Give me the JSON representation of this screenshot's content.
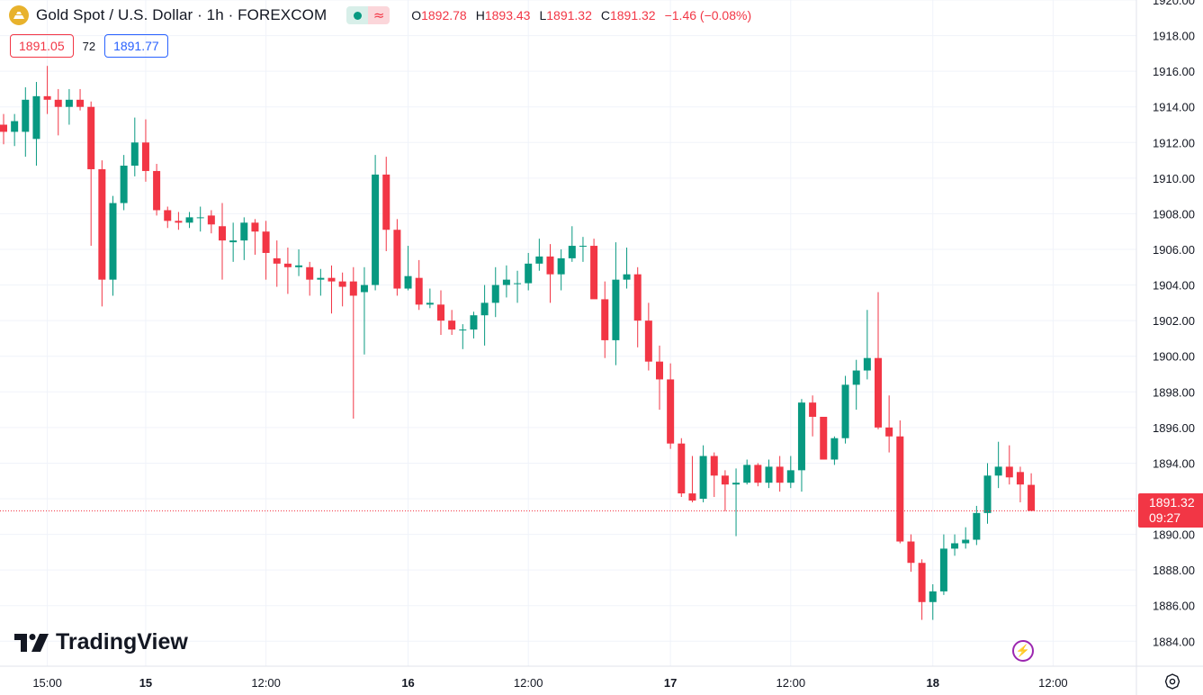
{
  "header": {
    "symbol_title": "Gold Spot / U.S. Dollar · 1h · FOREXCOM",
    "status_indicator": "market-open-dot",
    "ohlc": {
      "o_label": "O",
      "o_value": "1892.78",
      "h_label": "H",
      "h_value": "1893.43",
      "l_label": "L",
      "l_value": "1891.32",
      "c_label": "C",
      "c_value": "1891.32",
      "change": "−1.46 (−0.08%)"
    },
    "sell_price": "1891.05",
    "spread": "72",
    "buy_price": "1891.77"
  },
  "brand": {
    "name": "TradingView"
  },
  "price_label": {
    "price": "1891.32",
    "countdown": "09:27"
  },
  "colors": {
    "up": "#089981",
    "down": "#f23645",
    "grid": "#f0f3fa",
    "text": "#131722",
    "accent": "#2962ff"
  },
  "chart_data": {
    "type": "candlestick",
    "title": "Gold Spot / U.S. Dollar · 1h · FOREXCOM",
    "y_ticks": [
      "1884.00",
      "1886.00",
      "1888.00",
      "1890.00",
      "1892.00",
      "1894.00",
      "1896.00",
      "1898.00",
      "1900.00",
      "1902.00",
      "1904.00",
      "1906.00",
      "1908.00",
      "1910.00",
      "1912.00",
      "1914.00",
      "1916.00",
      "1918.00",
      "1920.00"
    ],
    "ylim": [
      1882.6,
      1920.0
    ],
    "x_ticks": [
      {
        "label": "15:00",
        "index": 4,
        "bold": false
      },
      {
        "label": "15",
        "index": 13,
        "bold": true
      },
      {
        "label": "12:00",
        "index": 24,
        "bold": false
      },
      {
        "label": "16",
        "index": 37,
        "bold": true
      },
      {
        "label": "12:00",
        "index": 48,
        "bold": false
      },
      {
        "label": "17",
        "index": 61,
        "bold": true
      },
      {
        "label": "12:00",
        "index": 72,
        "bold": false
      },
      {
        "label": "18",
        "index": 85,
        "bold": true
      },
      {
        "label": "12:00",
        "index": 96,
        "bold": false
      }
    ],
    "last_price": 1891.32,
    "candles": [
      [
        1913.0,
        1913.6,
        1911.9,
        1912.6
      ],
      [
        1912.6,
        1913.6,
        1911.8,
        1913.2
      ],
      [
        1912.6,
        1915.1,
        1911.2,
        1914.4
      ],
      [
        1912.2,
        1915.4,
        1910.7,
        1914.6
      ],
      [
        1914.6,
        1916.3,
        1913.6,
        1914.4
      ],
      [
        1914.4,
        1915.0,
        1912.4,
        1914.0
      ],
      [
        1914.0,
        1915.0,
        1913.0,
        1914.4
      ],
      [
        1914.4,
        1915.0,
        1913.8,
        1914.0
      ],
      [
        1914.0,
        1914.3,
        1906.2,
        1910.5
      ],
      [
        1910.5,
        1911.0,
        1902.8,
        1904.3
      ],
      [
        1904.3,
        1909.0,
        1903.4,
        1908.6
      ],
      [
        1908.6,
        1911.3,
        1908.2,
        1910.7
      ],
      [
        1910.7,
        1913.4,
        1910.1,
        1912.0
      ],
      [
        1912.0,
        1913.3,
        1909.8,
        1910.4
      ],
      [
        1910.4,
        1910.8,
        1907.9,
        1908.2
      ],
      [
        1908.2,
        1908.4,
        1907.2,
        1907.6
      ],
      [
        1907.6,
        1908.1,
        1907.1,
        1907.5
      ],
      [
        1907.5,
        1908.1,
        1907.2,
        1907.8
      ],
      [
        1907.8,
        1908.4,
        1907.0,
        1907.8
      ],
      [
        1907.9,
        1908.2,
        1906.9,
        1907.4
      ],
      [
        1907.3,
        1908.6,
        1904.3,
        1906.5
      ],
      [
        1906.4,
        1907.5,
        1905.3,
        1906.5
      ],
      [
        1906.5,
        1907.8,
        1905.4,
        1907.5
      ],
      [
        1907.5,
        1907.7,
        1905.7,
        1907.0
      ],
      [
        1907.0,
        1907.6,
        1904.3,
        1905.8
      ],
      [
        1905.5,
        1906.5,
        1903.9,
        1905.2
      ],
      [
        1905.2,
        1906.1,
        1903.5,
        1905.0
      ],
      [
        1905.0,
        1906.0,
        1904.5,
        1905.1
      ],
      [
        1905.0,
        1905.3,
        1903.4,
        1904.3
      ],
      [
        1904.3,
        1904.9,
        1903.4,
        1904.4
      ],
      [
        1904.4,
        1905.1,
        1902.4,
        1904.2
      ],
      [
        1904.2,
        1904.7,
        1902.8,
        1903.9
      ],
      [
        1904.2,
        1905.0,
        1896.5,
        1903.4
      ],
      [
        1903.6,
        1905.0,
        1900.1,
        1904.0
      ],
      [
        1904.0,
        1911.3,
        1903.7,
        1910.2
      ],
      [
        1910.2,
        1911.2,
        1905.9,
        1907.1
      ],
      [
        1907.1,
        1907.7,
        1903.4,
        1903.8
      ],
      [
        1903.8,
        1906.2,
        1903.7,
        1904.5
      ],
      [
        1904.4,
        1905.4,
        1902.6,
        1902.9
      ],
      [
        1902.9,
        1903.8,
        1902.7,
        1903.0
      ],
      [
        1902.9,
        1903.7,
        1901.2,
        1902.0
      ],
      [
        1902.0,
        1902.6,
        1901.2,
        1901.5
      ],
      [
        1901.5,
        1901.8,
        1900.4,
        1901.5
      ],
      [
        1901.5,
        1902.5,
        1901.0,
        1902.3
      ],
      [
        1902.3,
        1904.0,
        1900.6,
        1903.0
      ],
      [
        1903.0,
        1905.0,
        1902.2,
        1904.0
      ],
      [
        1904.0,
        1905.1,
        1903.3,
        1904.3
      ],
      [
        1904.1,
        1904.8,
        1903.0,
        1904.1
      ],
      [
        1904.1,
        1905.8,
        1903.7,
        1905.2
      ],
      [
        1905.2,
        1906.6,
        1904.8,
        1905.6
      ],
      [
        1905.6,
        1906.3,
        1903.0,
        1904.6
      ],
      [
        1904.6,
        1906.0,
        1903.7,
        1905.5
      ],
      [
        1905.5,
        1907.3,
        1905.3,
        1906.2
      ],
      [
        1906.2,
        1906.7,
        1905.3,
        1906.2
      ],
      [
        1906.2,
        1906.6,
        1903.3,
        1903.2
      ],
      [
        1903.2,
        1904.2,
        1899.9,
        1900.9
      ],
      [
        1900.9,
        1906.4,
        1899.5,
        1904.3
      ],
      [
        1904.3,
        1906.1,
        1903.8,
        1904.6
      ],
      [
        1904.6,
        1905.0,
        1900.5,
        1902.0
      ],
      [
        1902.0,
        1903.0,
        1899.2,
        1899.7
      ],
      [
        1899.7,
        1900.6,
        1897.0,
        1898.7
      ],
      [
        1898.7,
        1899.6,
        1894.8,
        1895.1
      ],
      [
        1895.1,
        1895.4,
        1892.1,
        1892.3
      ],
      [
        1892.3,
        1894.4,
        1891.8,
        1891.9
      ],
      [
        1892.0,
        1895.0,
        1891.8,
        1894.4
      ],
      [
        1894.4,
        1894.6,
        1892.1,
        1893.3
      ],
      [
        1893.3,
        1893.6,
        1891.3,
        1892.8
      ],
      [
        1892.8,
        1893.7,
        1889.9,
        1892.9
      ],
      [
        1892.9,
        1894.2,
        1892.8,
        1893.9
      ],
      [
        1893.9,
        1894.0,
        1892.7,
        1892.9
      ],
      [
        1892.9,
        1894.2,
        1892.6,
        1893.8
      ],
      [
        1893.8,
        1894.4,
        1892.4,
        1892.9
      ],
      [
        1892.9,
        1894.4,
        1892.6,
        1893.6
      ],
      [
        1893.6,
        1897.6,
        1892.4,
        1897.4
      ],
      [
        1897.4,
        1897.8,
        1895.5,
        1896.6
      ],
      [
        1896.6,
        1896.6,
        1894.2,
        1894.2
      ],
      [
        1894.2,
        1895.5,
        1893.9,
        1895.4
      ],
      [
        1895.4,
        1898.9,
        1895.1,
        1898.4
      ],
      [
        1898.4,
        1899.8,
        1897.0,
        1899.2
      ],
      [
        1899.2,
        1902.6,
        1898.7,
        1899.9
      ],
      [
        1899.9,
        1903.6,
        1895.9,
        1896.0
      ],
      [
        1896.0,
        1897.8,
        1894.6,
        1895.5
      ],
      [
        1895.5,
        1896.4,
        1889.5,
        1889.6
      ],
      [
        1889.6,
        1890.0,
        1887.9,
        1888.4
      ],
      [
        1888.4,
        1888.6,
        1885.2,
        1886.2
      ],
      [
        1886.2,
        1887.2,
        1885.2,
        1886.8
      ],
      [
        1886.8,
        1890.0,
        1886.6,
        1889.2
      ],
      [
        1889.2,
        1890.0,
        1888.8,
        1889.5
      ],
      [
        1889.5,
        1890.4,
        1889.2,
        1889.7
      ],
      [
        1889.7,
        1891.6,
        1889.4,
        1891.2
      ],
      [
        1891.2,
        1894.0,
        1890.6,
        1893.3
      ],
      [
        1893.3,
        1895.2,
        1892.6,
        1893.8
      ],
      [
        1893.8,
        1895.0,
        1892.8,
        1893.2
      ],
      [
        1893.5,
        1893.8,
        1891.8,
        1892.8
      ],
      [
        1892.78,
        1893.43,
        1891.32,
        1891.32
      ]
    ]
  }
}
